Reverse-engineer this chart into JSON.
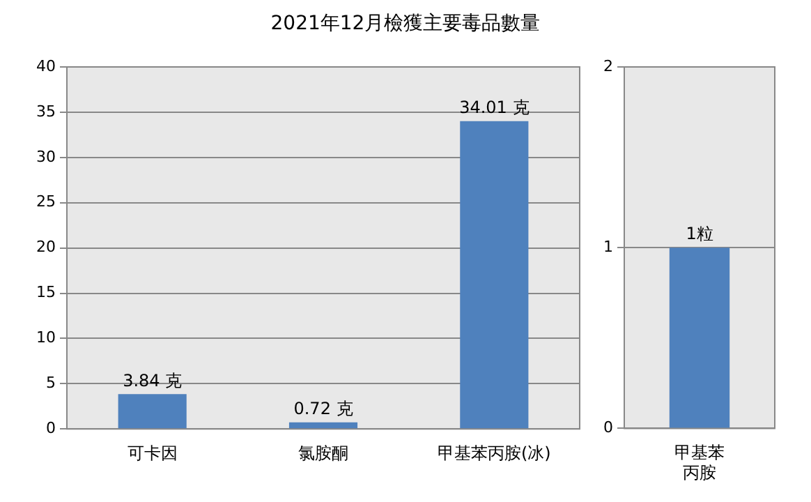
{
  "chart_data": [
    {
      "type": "bar",
      "title": "2021年12月檢獲主要毒品數量",
      "categories": [
        "可卡因",
        "氯胺酮",
        "甲基苯丙胺(冰)"
      ],
      "values": [
        3.84,
        0.72,
        34.01
      ],
      "color": "#4f81bd",
      "value_labels": [
        "3.84 克",
        "0.72 克",
        "34.01 克"
      ],
      "ylim": [
        0,
        40
      ],
      "yticks": [
        0,
        5,
        10,
        15,
        20,
        25,
        30,
        35,
        40
      ],
      "grid": "y"
    },
    {
      "type": "bar",
      "categories": [
        "甲基苯丙胺"
      ],
      "values": [
        1
      ],
      "color": "#4f81bd",
      "value_labels": [
        "1粒"
      ],
      "ylim": [
        0,
        2
      ],
      "yticks": [
        0,
        1,
        2
      ],
      "grid": "y"
    }
  ]
}
